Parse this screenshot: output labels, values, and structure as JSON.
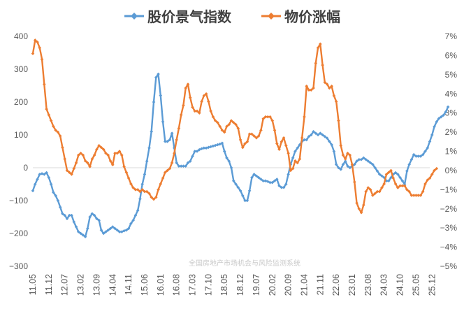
{
  "chart_data": {
    "type": "line",
    "legend_position": "top-center",
    "grid": false,
    "watermark": "全国房地产市场机会与风险监测系统",
    "x_ticks": [
      "11.05",
      "11.12",
      "12.07",
      "13.02",
      "13.09",
      "14.04",
      "14.11",
      "15.06",
      "16.01",
      "16.08",
      "17.03",
      "17.10",
      "18.05",
      "18.12",
      "19.07",
      "20.02",
      "20.09",
      "21.04",
      "21.11",
      "22.06",
      "23.01",
      "23.08",
      "24.03",
      "24.10",
      "25.05",
      "25.12"
    ],
    "y_left": {
      "min": -300,
      "max": 400,
      "ticks": [
        "400",
        "300",
        "200",
        "100",
        "0",
        "−100",
        "−200",
        "−300"
      ]
    },
    "y_right": {
      "min": -5,
      "max": 7,
      "ticks": [
        "7%",
        "6%",
        "5%",
        "4%",
        "3%",
        "2%",
        "1%",
        "0%",
        "−1%",
        "−2%",
        "−3%",
        "−4%",
        "−5%"
      ]
    },
    "series": [
      {
        "name": "股价景气指数",
        "axis": "left",
        "color": "#5b9bd5",
        "start": "2011-05",
        "values": [
          -70,
          -50,
          -35,
          -20,
          -18,
          -20,
          -15,
          -30,
          -50,
          -75,
          -85,
          -100,
          -120,
          -140,
          -145,
          -155,
          -145,
          -145,
          -165,
          -180,
          -195,
          -200,
          -205,
          -210,
          -185,
          -150,
          -140,
          -145,
          -155,
          -160,
          -190,
          -200,
          -195,
          -190,
          -185,
          -180,
          -185,
          -190,
          -195,
          -195,
          -192,
          -190,
          -185,
          -170,
          -160,
          -145,
          -130,
          -95,
          -50,
          -20,
          20,
          60,
          110,
          200,
          275,
          285,
          220,
          140,
          80,
          80,
          85,
          105,
          60,
          15,
          5,
          5,
          5,
          5,
          15,
          20,
          35,
          50,
          50,
          55,
          58,
          60,
          60,
          62,
          64,
          66,
          68,
          70,
          72,
          75,
          50,
          30,
          20,
          0,
          -40,
          -50,
          -60,
          -70,
          -85,
          -100,
          -100,
          -70,
          -30,
          -20,
          -25,
          -30,
          -35,
          -40,
          -40,
          -42,
          -45,
          -45,
          -40,
          -35,
          -55,
          -60,
          -60,
          -50,
          -20,
          10,
          30,
          50,
          60,
          70,
          80,
          85,
          85,
          95,
          100,
          110,
          105,
          100,
          105,
          100,
          95,
          90,
          80,
          70,
          50,
          10,
          0,
          -5,
          10,
          20,
          5,
          0,
          5,
          10,
          20,
          25,
          25,
          30,
          25,
          20,
          15,
          10,
          0,
          -10,
          -20,
          -25,
          -30,
          -40,
          -40,
          -30,
          -20,
          -15,
          -20,
          -30,
          -40,
          -50,
          -10,
          10,
          25,
          40,
          35,
          35,
          35,
          40,
          50,
          60,
          80,
          100,
          125,
          140,
          150,
          155,
          160,
          170,
          185
        ]
      },
      {
        "name": "物价涨幅",
        "axis": "right",
        "color": "#ed7d31",
        "start": "2011-05",
        "values": [
          6.1,
          6.8,
          6.7,
          6.4,
          5.8,
          4.5,
          3.2,
          2.9,
          2.6,
          2.3,
          2.1,
          2.0,
          1.8,
          1.2,
          0.6,
          0.0,
          -0.1,
          -0.2,
          0.1,
          0.4,
          0.8,
          0.9,
          0.8,
          0.5,
          0.4,
          0.2,
          0.6,
          0.8,
          1.1,
          1.3,
          1.2,
          1.1,
          0.9,
          0.8,
          0.5,
          0.3,
          0.9,
          0.9,
          1.0,
          0.8,
          0.2,
          -0.1,
          -0.4,
          -0.7,
          -0.9,
          -1.0,
          -1.0,
          -1.1,
          -1.0,
          -1.1,
          -1.1,
          -1.2,
          -1.4,
          -1.5,
          -1.4,
          -1.0,
          -0.7,
          -0.4,
          -0.1,
          0.0,
          0.1,
          0.4,
          0.9,
          1.6,
          2.2,
          2.9,
          3.4,
          4.3,
          4.5,
          3.8,
          3.3,
          3.1,
          3.1,
          3.0,
          3.6,
          3.9,
          4.0,
          3.6,
          3.1,
          2.8,
          2.6,
          2.5,
          2.3,
          2.1,
          2.0,
          2.3,
          2.4,
          2.6,
          2.5,
          2.4,
          2.2,
          1.6,
          1.2,
          1.4,
          1.5,
          1.9,
          1.9,
          1.8,
          1.7,
          1.8,
          2.1,
          2.7,
          2.8,
          2.8,
          2.8,
          2.6,
          2.1,
          1.4,
          1.1,
          1.5,
          1.7,
          1.3,
          0.9,
          0.0,
          0.1,
          0.5,
          0.4,
          0.6,
          1.7,
          2.8,
          4.4,
          4.2,
          4.2,
          4.3,
          5.6,
          6.4,
          6.6,
          5.5,
          4.6,
          4.5,
          4.3,
          4.4,
          3.9,
          3.6,
          2.6,
          1.3,
          0.8,
          0.6,
          0.9,
          0.8,
          0.3,
          -0.6,
          -1.7,
          -2.0,
          -2.2,
          -1.8,
          -1.1,
          -0.9,
          -1.0,
          -1.3,
          -1.2,
          -1.1,
          -1.1,
          -0.9,
          -0.7,
          -0.2,
          -0.1,
          0.0,
          -0.4,
          -0.7,
          -0.9,
          -0.8,
          -0.8,
          -0.8,
          -1.0,
          -1.1,
          -1.3,
          -1.3,
          -1.3,
          -1.3,
          -1.3,
          -1.1,
          -0.7,
          -0.5,
          -0.4,
          -0.2,
          0.0,
          0.1
        ]
      }
    ]
  }
}
